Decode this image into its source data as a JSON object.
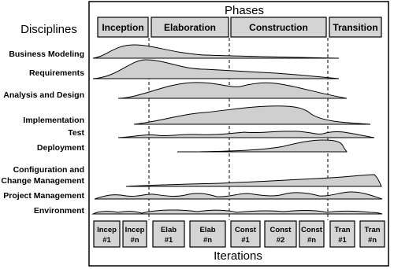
{
  "header": {
    "title": "Phases",
    "disciplines_label": "Disciplines",
    "footer": "Iterations"
  },
  "phases": [
    "Inception",
    "Elaboration",
    "Construction",
    "Transition"
  ],
  "disciplines": [
    {
      "lines": [
        "Business Modeling"
      ]
    },
    {
      "lines": [
        "Requirements"
      ]
    },
    {
      "lines": [
        "Analysis and Design"
      ]
    },
    {
      "lines": [
        "Implementation"
      ]
    },
    {
      "lines": [
        "Test"
      ]
    },
    {
      "lines": [
        "Deployment"
      ]
    },
    {
      "lines": [
        "Configuration and",
        "Change Management"
      ]
    },
    {
      "lines": [
        "Project Management"
      ]
    },
    {
      "lines": [
        "Environment"
      ]
    }
  ],
  "iterations": [
    {
      "name": "Incep",
      "number": "#1"
    },
    {
      "name": "Incep",
      "number": "#n"
    },
    {
      "name": "Elab",
      "number": "#1"
    },
    {
      "name": "Elab",
      "number": "#n"
    },
    {
      "name": "Const",
      "number": "#1"
    },
    {
      "name": "Const",
      "number": "#2"
    },
    {
      "name": "Const",
      "number": "#n"
    },
    {
      "name": "Tran",
      "number": "#1"
    },
    {
      "name": "Tran",
      "number": "#n"
    }
  ]
}
